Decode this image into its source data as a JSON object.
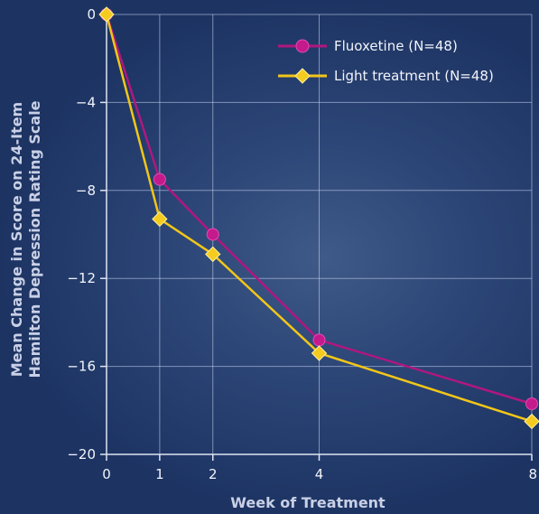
{
  "chart_data": {
    "type": "line",
    "title": "",
    "xlabel": "Week of Treatment",
    "ylabel_line1": "Mean Change in Score on 24-Item",
    "ylabel_line2": "Hamilton Depression Rating Scale",
    "x": [
      0,
      1,
      2,
      4,
      8
    ],
    "xticks": [
      "0",
      "1",
      "2",
      "4",
      "8"
    ],
    "yticks": [
      "0",
      "−4",
      "−8",
      "−12",
      "−16",
      "−20"
    ],
    "ytick_values": [
      0,
      -4,
      -8,
      -12,
      -16,
      -20
    ],
    "xlim": [
      0,
      8
    ],
    "ylim": [
      -20,
      0
    ],
    "grid": true,
    "legend_position": "top-right",
    "series": [
      {
        "name": "Fluoxetine (N=48)",
        "values": [
          0,
          -7.5,
          -10.0,
          -14.8,
          -17.7
        ],
        "color": "#b0177f",
        "marker": "circle"
      },
      {
        "name": "Light treatment (N=48)",
        "values": [
          0,
          -9.3,
          -10.9,
          -15.4,
          -18.5
        ],
        "color": "#f2c619",
        "marker": "diamond"
      }
    ]
  }
}
